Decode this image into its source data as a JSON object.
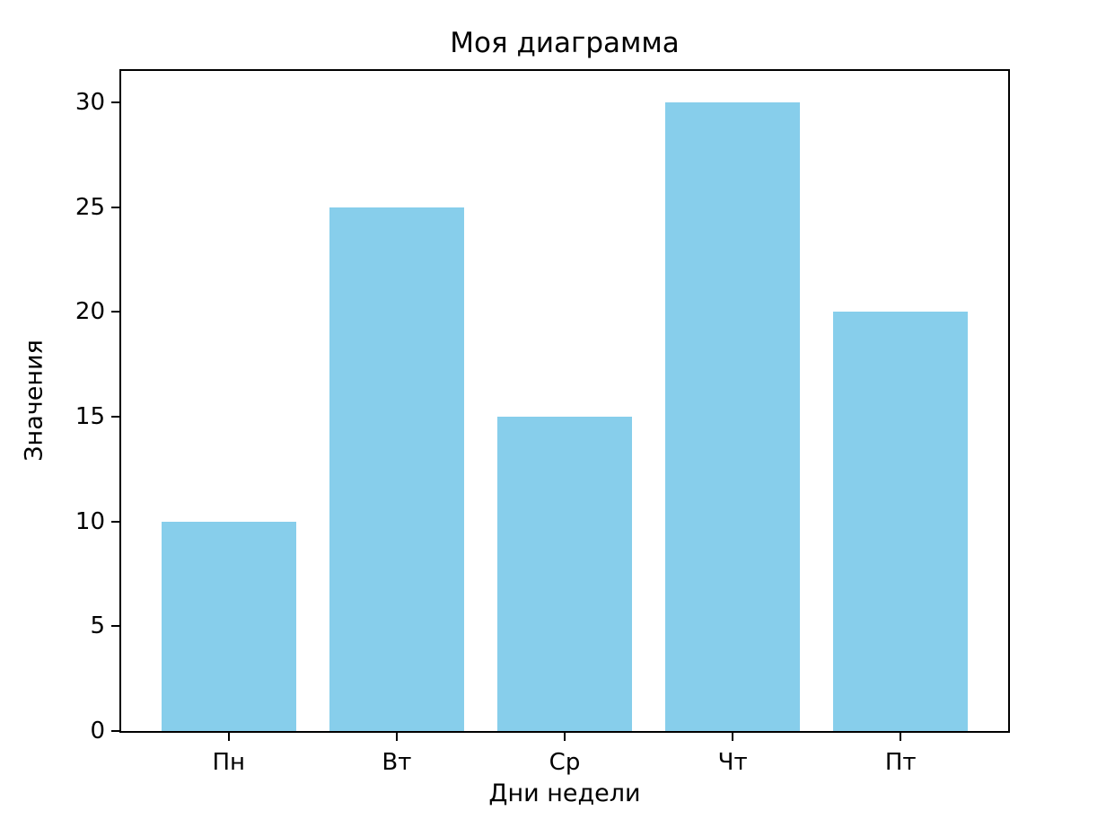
{
  "chart_data": {
    "type": "bar",
    "title": "Моя диаграмма",
    "xlabel": "Дни недели",
    "ylabel": "Значения",
    "categories": [
      "Пн",
      "Вт",
      "Ср",
      "Чт",
      "Пт"
    ],
    "values": [
      10,
      25,
      15,
      30,
      20
    ],
    "yticks": [
      0,
      5,
      10,
      15,
      20,
      25,
      30
    ],
    "ylim": [
      0,
      31.5
    ],
    "xlim": [
      -0.64,
      4.64
    ],
    "bar_width_units": 0.8,
    "bar_color": "#87CEEB",
    "spine_color": "#000000",
    "text_color": "#000000",
    "background_color": "#ffffff",
    "grid": false,
    "legend": "none"
  }
}
